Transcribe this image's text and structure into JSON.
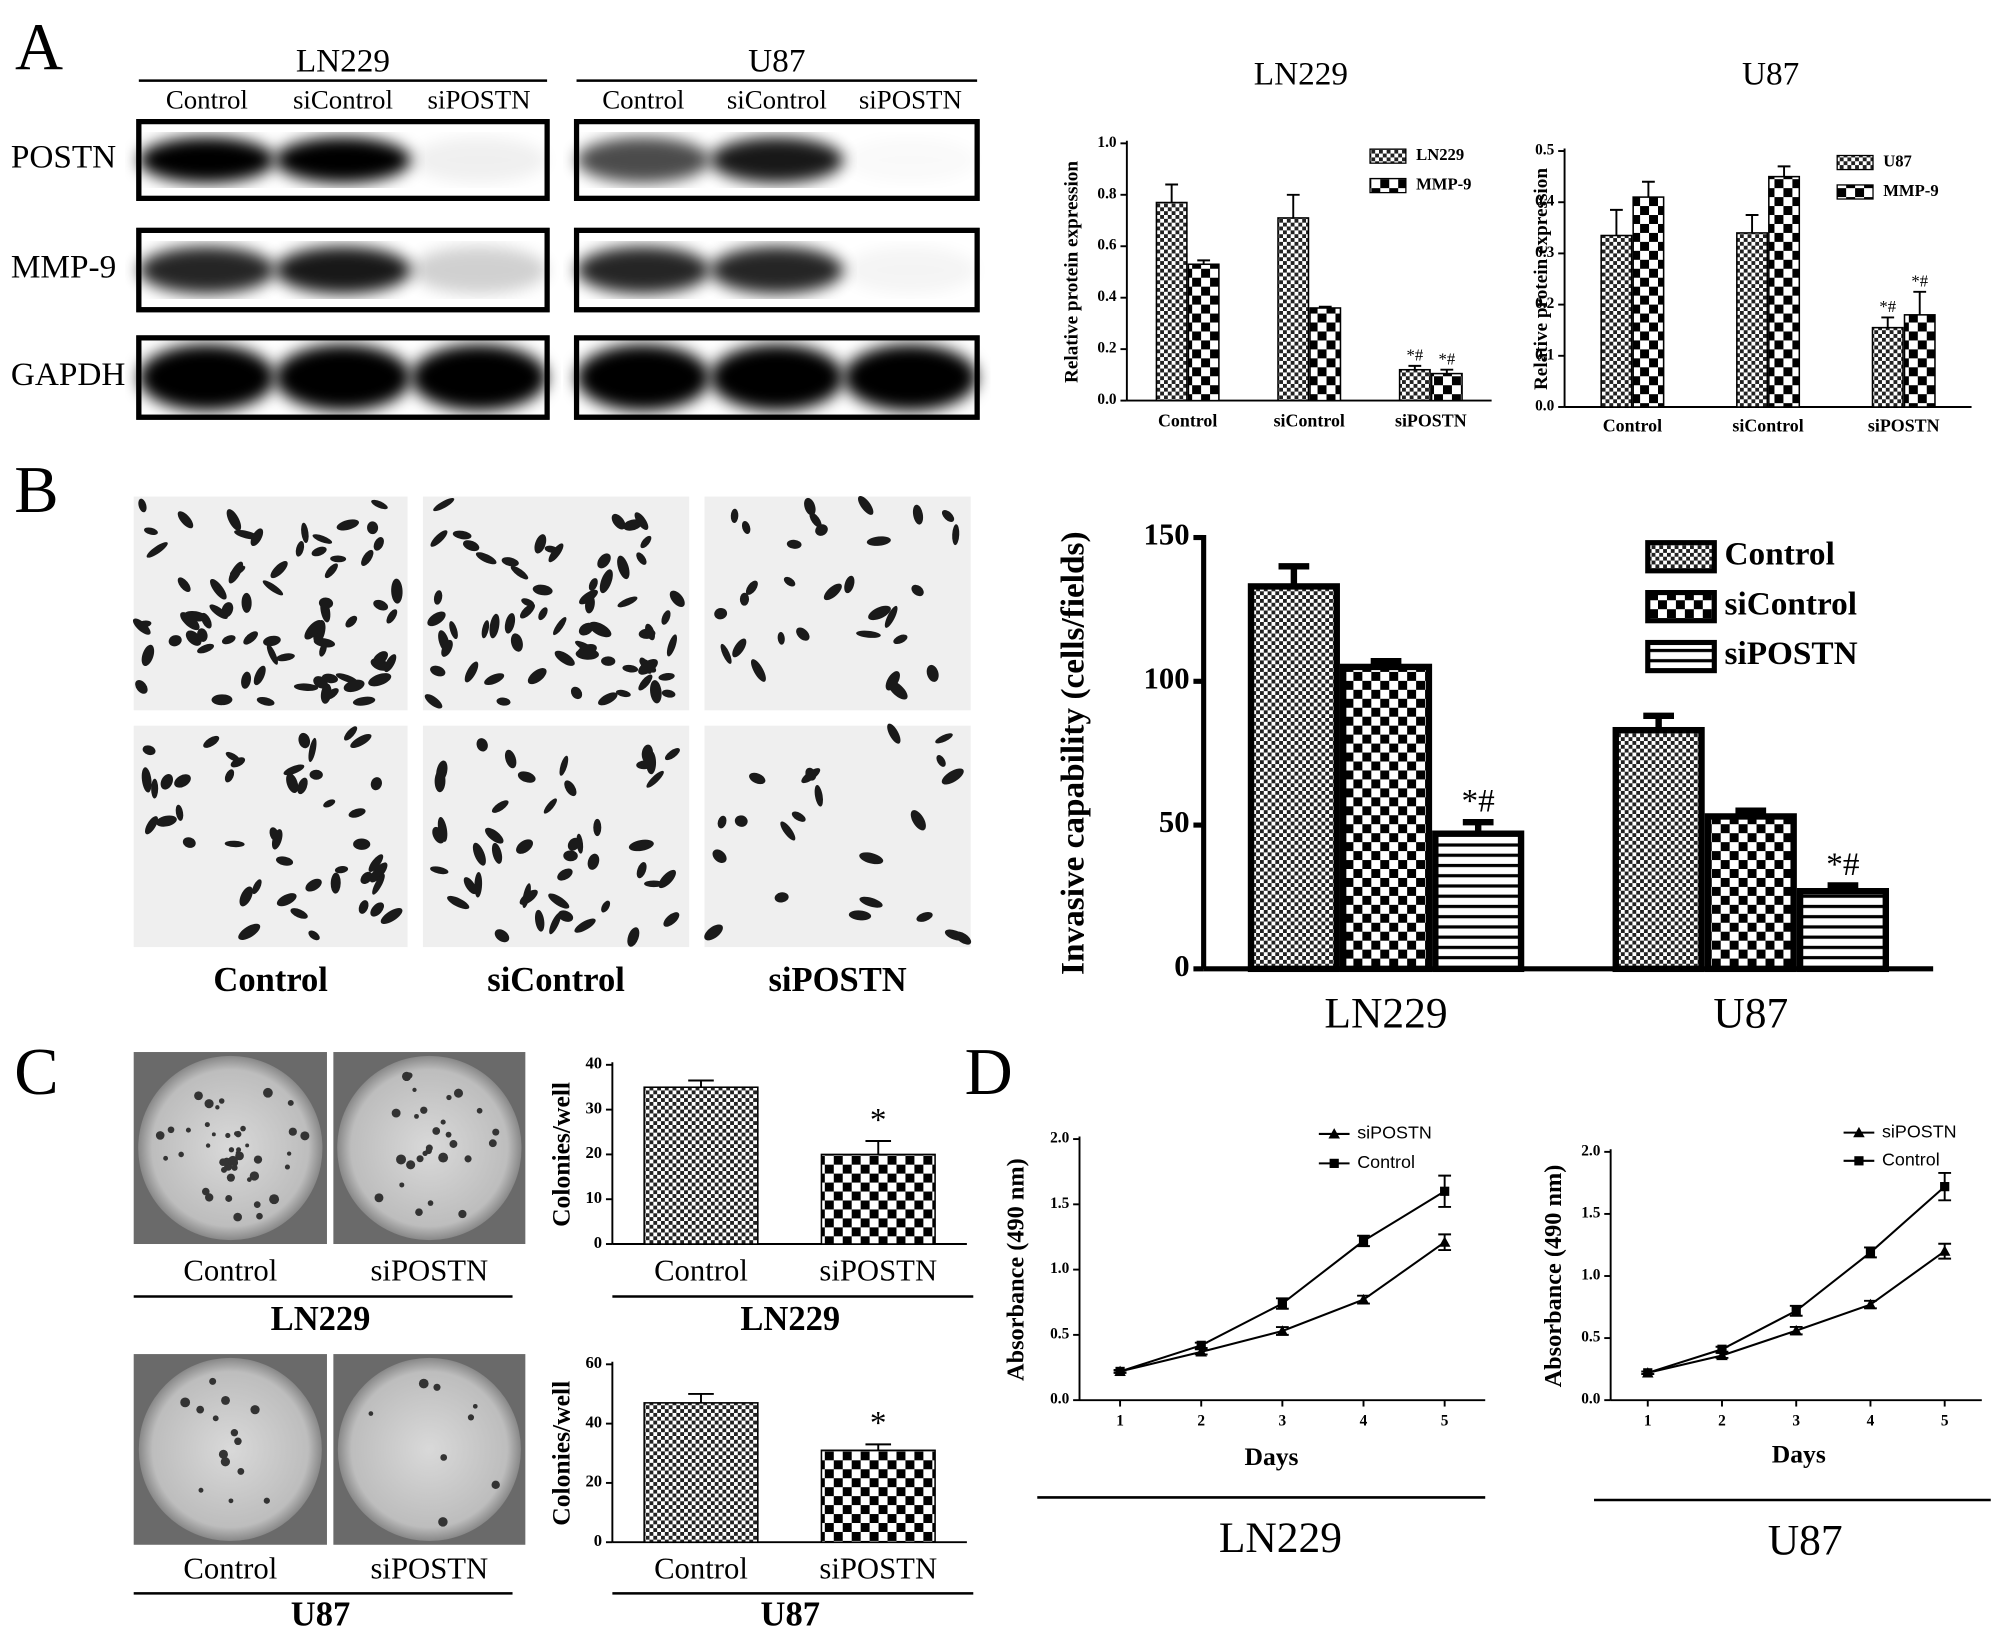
{
  "panel_labels": [
    "A",
    "B",
    "C",
    "D"
  ],
  "blots": {
    "groups": [
      {
        "name": "LN229",
        "lanes": [
          "Control",
          "siControl",
          "siPOSTN"
        ]
      },
      {
        "name": "U87",
        "lanes": [
          "Control",
          "siControl",
          "siPOSTN"
        ]
      }
    ],
    "rows": [
      "POSTN",
      "MMP-9",
      "GAPDH"
    ]
  },
  "invasion_images": {
    "labels": [
      "Control",
      "siControl",
      "siPOSTN"
    ]
  },
  "colony_images": [
    {
      "labels": [
        "Control",
        "siPOSTN"
      ],
      "group": "LN229"
    },
    {
      "labels": [
        "Control",
        "siPOSTN"
      ],
      "group": "U87"
    }
  ],
  "chart_data": [
    {
      "type": "bar",
      "title": "LN229",
      "ylabel": "Relative protein expression",
      "categories": [
        "Control",
        "siControl",
        "siPOSTN"
      ],
      "series": [
        {
          "name": "LN229",
          "pattern": "fine-check",
          "values": [
            0.77,
            0.71,
            0.12
          ],
          "errors": [
            0.07,
            0.09,
            0.015
          ],
          "significance": [
            null,
            null,
            "*#"
          ]
        },
        {
          "name": "MMP-9",
          "pattern": "coarse-check",
          "values": [
            0.53,
            0.36,
            0.105
          ],
          "errors": [
            0.015,
            0.005,
            0.015
          ],
          "significance": [
            null,
            null,
            "*#"
          ]
        }
      ],
      "ylim": [
        0,
        1
      ],
      "yticks": [
        {
          "value": 0,
          "label": "0.0"
        },
        0.2,
        0.4,
        0.6,
        0.8,
        {
          "value": 1,
          "label": "1.0"
        }
      ]
    },
    {
      "type": "bar",
      "title": "U87",
      "ylabel": "Relative protein expression",
      "categories": [
        "Control",
        "siControl",
        "siPOSTN"
      ],
      "series": [
        {
          "name": "U87",
          "pattern": "fine-check",
          "values": [
            0.335,
            0.34,
            0.155
          ],
          "errors": [
            0.05,
            0.035,
            0.02
          ],
          "significance": [
            null,
            null,
            "*#"
          ]
        },
        {
          "name": "MMP-9",
          "pattern": "coarse-check",
          "values": [
            0.41,
            0.45,
            0.18
          ],
          "errors": [
            0.03,
            0.02,
            0.045
          ],
          "significance": [
            null,
            null,
            "*#"
          ]
        }
      ],
      "ylim": [
        0,
        0.5
      ],
      "yticks": [
        {
          "value": 0,
          "label": "0.0"
        },
        0.1,
        0.2,
        0.3,
        0.4,
        0.5
      ]
    },
    {
      "type": "bar",
      "ylabel": "Invasive capability (cells/fields)",
      "categories": [
        "LN229",
        "U87"
      ],
      "series": [
        {
          "name": "Control",
          "pattern": "fine-check",
          "values": [
            133,
            83
          ],
          "errors": [
            7,
            5
          ]
        },
        {
          "name": "siControl",
          "pattern": "coarse-check",
          "values": [
            105,
            53
          ],
          "errors": [
            2,
            2
          ]
        },
        {
          "name": "siPOSTN",
          "pattern": "stripes",
          "values": [
            47,
            27
          ],
          "errors": [
            4,
            2
          ],
          "significance": [
            "*#",
            "*#"
          ]
        }
      ],
      "ylim": [
        0,
        150
      ],
      "yticks": [
        0,
        50,
        100,
        150
      ]
    },
    {
      "type": "bar",
      "ylabel": "Colonies/well",
      "categories": [
        "Control",
        "siPOSTN"
      ],
      "values": [
        35,
        20
      ],
      "errors": [
        1.5,
        3
      ],
      "significance": [
        null,
        "*"
      ],
      "patterns": [
        "fine-check",
        "coarse-check"
      ],
      "ylim": [
        0,
        40
      ],
      "yticks": [
        0,
        10,
        20,
        30,
        40
      ],
      "group_label": "LN229"
    },
    {
      "type": "bar",
      "ylabel": "Colonies/well",
      "categories": [
        "Control",
        "siPOSTN"
      ],
      "values": [
        47,
        31
      ],
      "errors": [
        3,
        2
      ],
      "significance": [
        null,
        "*"
      ],
      "patterns": [
        "fine-check",
        "coarse-check"
      ],
      "ylim": [
        0,
        60
      ],
      "yticks": [
        0,
        20,
        40,
        60
      ],
      "group_label": "U87"
    },
    {
      "type": "line",
      "xlabel": "Days",
      "ylabel": "Absorbance (490 nm)",
      "x": [
        1,
        2,
        3,
        4,
        5
      ],
      "series": [
        {
          "name": "siPOSTN",
          "marker": "triangle",
          "values": [
            0.22,
            0.37,
            0.53,
            0.77,
            1.21
          ],
          "errors": [
            0.01,
            0.02,
            0.03,
            0.03,
            0.06
          ]
        },
        {
          "name": "Control",
          "marker": "square",
          "values": [
            0.22,
            0.42,
            0.74,
            1.22,
            1.6
          ],
          "errors": [
            0.01,
            0.02,
            0.04,
            0.04,
            0.12
          ]
        }
      ],
      "xlim": [
        0.5,
        5.5
      ],
      "xticks": [
        1,
        2,
        3,
        4,
        5
      ],
      "ylim": [
        0,
        2
      ],
      "yticks": [
        {
          "value": 0,
          "label": "0.0"
        },
        0.5,
        {
          "value": 1,
          "label": "1.0"
        },
        1.5,
        {
          "value": 2,
          "label": "2.0"
        }
      ],
      "group_label": "LN229"
    },
    {
      "type": "line",
      "xlabel": "Days",
      "ylabel": "Absorbance (490 nm)",
      "x": [
        1,
        2,
        3,
        4,
        5
      ],
      "series": [
        {
          "name": "siPOSTN",
          "marker": "triangle",
          "values": [
            0.22,
            0.36,
            0.56,
            0.77,
            1.2
          ],
          "errors": [
            0.01,
            0.02,
            0.03,
            0.03,
            0.06
          ]
        },
        {
          "name": "Control",
          "marker": "square",
          "values": [
            0.22,
            0.41,
            0.72,
            1.19,
            1.72
          ],
          "errors": [
            0.01,
            0.02,
            0.04,
            0.04,
            0.11
          ]
        }
      ],
      "xlim": [
        0.5,
        5.5
      ],
      "xticks": [
        1,
        2,
        3,
        4,
        5
      ],
      "ylim": [
        0,
        2
      ],
      "yticks": [
        {
          "value": 0,
          "label": "0.0"
        },
        0.5,
        {
          "value": 1,
          "label": "1.0"
        },
        1.5,
        {
          "value": 2,
          "label": "2.0"
        }
      ],
      "group_label": "U87"
    }
  ]
}
